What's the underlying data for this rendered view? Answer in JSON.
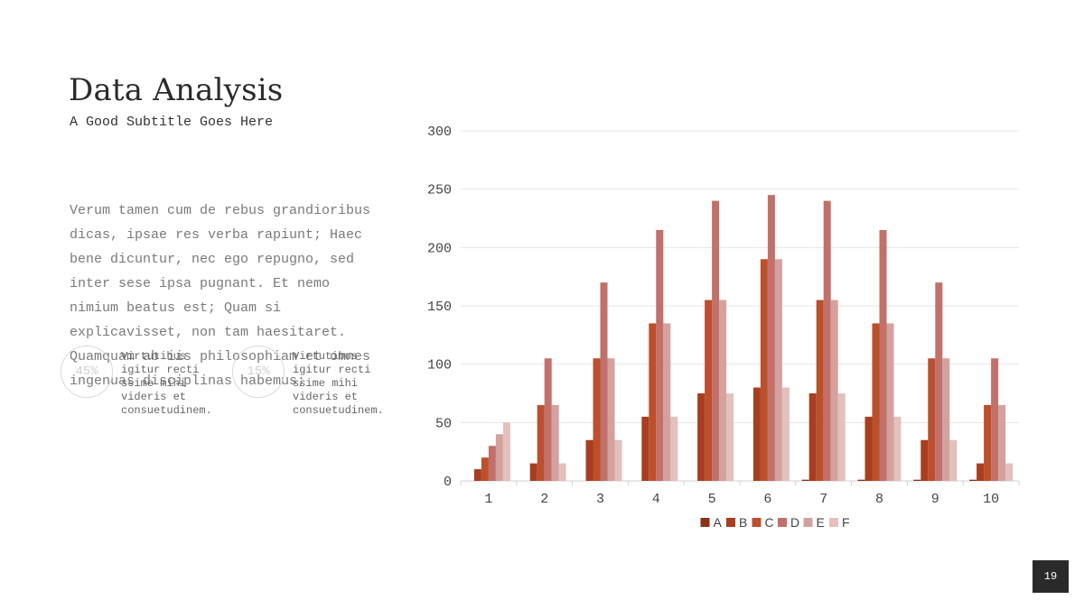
{
  "slide": {
    "title": "Data Analysis",
    "subtitle": "A Good Subtitle Goes Here",
    "body": "Verum tamen cum de rebus grandioribus dicas, ipsae res verba rapiunt; Haec bene dicuntur, nec ego repugno, sed inter sese ipsa pugnant. Et nemo nimium beatus est; Quam si explicavisset, non tam haesitaret. Quamquam ab iis philosophiam et omnes ingenuas disciplinas habemus;",
    "stats": [
      {
        "value": "45%",
        "text": "Virtutibus igitur recti ssime mihi videris et consuetudinem."
      },
      {
        "value": "15%",
        "text": "Virtutibus igitur recti ssime mihi videris et consuetudinem."
      }
    ],
    "page_number": "19"
  },
  "colors": {
    "A": "#8e2f17",
    "B": "#a83e1f",
    "C": "#bc4f2c",
    "D": "#c2706a",
    "E": "#d3a29e",
    "F": "#e2c0bc",
    "grid": "#e4e4e4",
    "axis_text": "#444444"
  },
  "chart_data": {
    "type": "bar",
    "categories": [
      "1",
      "2",
      "3",
      "4",
      "5",
      "6",
      "7",
      "8",
      "9",
      "10"
    ],
    "ylim": [
      0,
      300
    ],
    "yticks": [
      0,
      50,
      100,
      150,
      200,
      250,
      300
    ],
    "grid": true,
    "legend_position": "bottom",
    "series": [
      {
        "name": "A",
        "values": [
          0,
          0,
          0,
          0,
          0,
          0,
          1,
          1,
          1,
          1
        ]
      },
      {
        "name": "B",
        "values": [
          10,
          15,
          35,
          55,
          75,
          80,
          75,
          55,
          35,
          15
        ]
      },
      {
        "name": "C",
        "values": [
          20,
          65,
          105,
          135,
          155,
          190,
          155,
          135,
          105,
          65
        ]
      },
      {
        "name": "D",
        "values": [
          30,
          105,
          170,
          215,
          240,
          245,
          240,
          215,
          170,
          105
        ]
      },
      {
        "name": "E",
        "values": [
          40,
          65,
          105,
          135,
          155,
          190,
          155,
          135,
          105,
          65
        ]
      },
      {
        "name": "F",
        "values": [
          50,
          15,
          35,
          55,
          75,
          80,
          75,
          55,
          35,
          15
        ]
      }
    ]
  }
}
